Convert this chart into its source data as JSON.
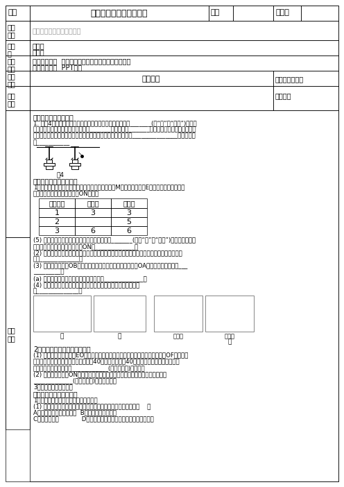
{
  "title_row": {
    "col1": "课题",
    "col2": "八上实验专项训练教学案",
    "col3": "课时",
    "col5": "任课人"
  },
  "table_header": [
    "实验次序",
    "入射角",
    "反射角"
  ],
  "table_data": [
    [
      "1",
      "3",
      "3"
    ],
    [
      "2",
      "",
      "5"
    ],
    [
      "3",
      "6",
      "6"
    ]
  ],
  "bg_color": "#ffffff",
  "gray_text_color": "#999999"
}
